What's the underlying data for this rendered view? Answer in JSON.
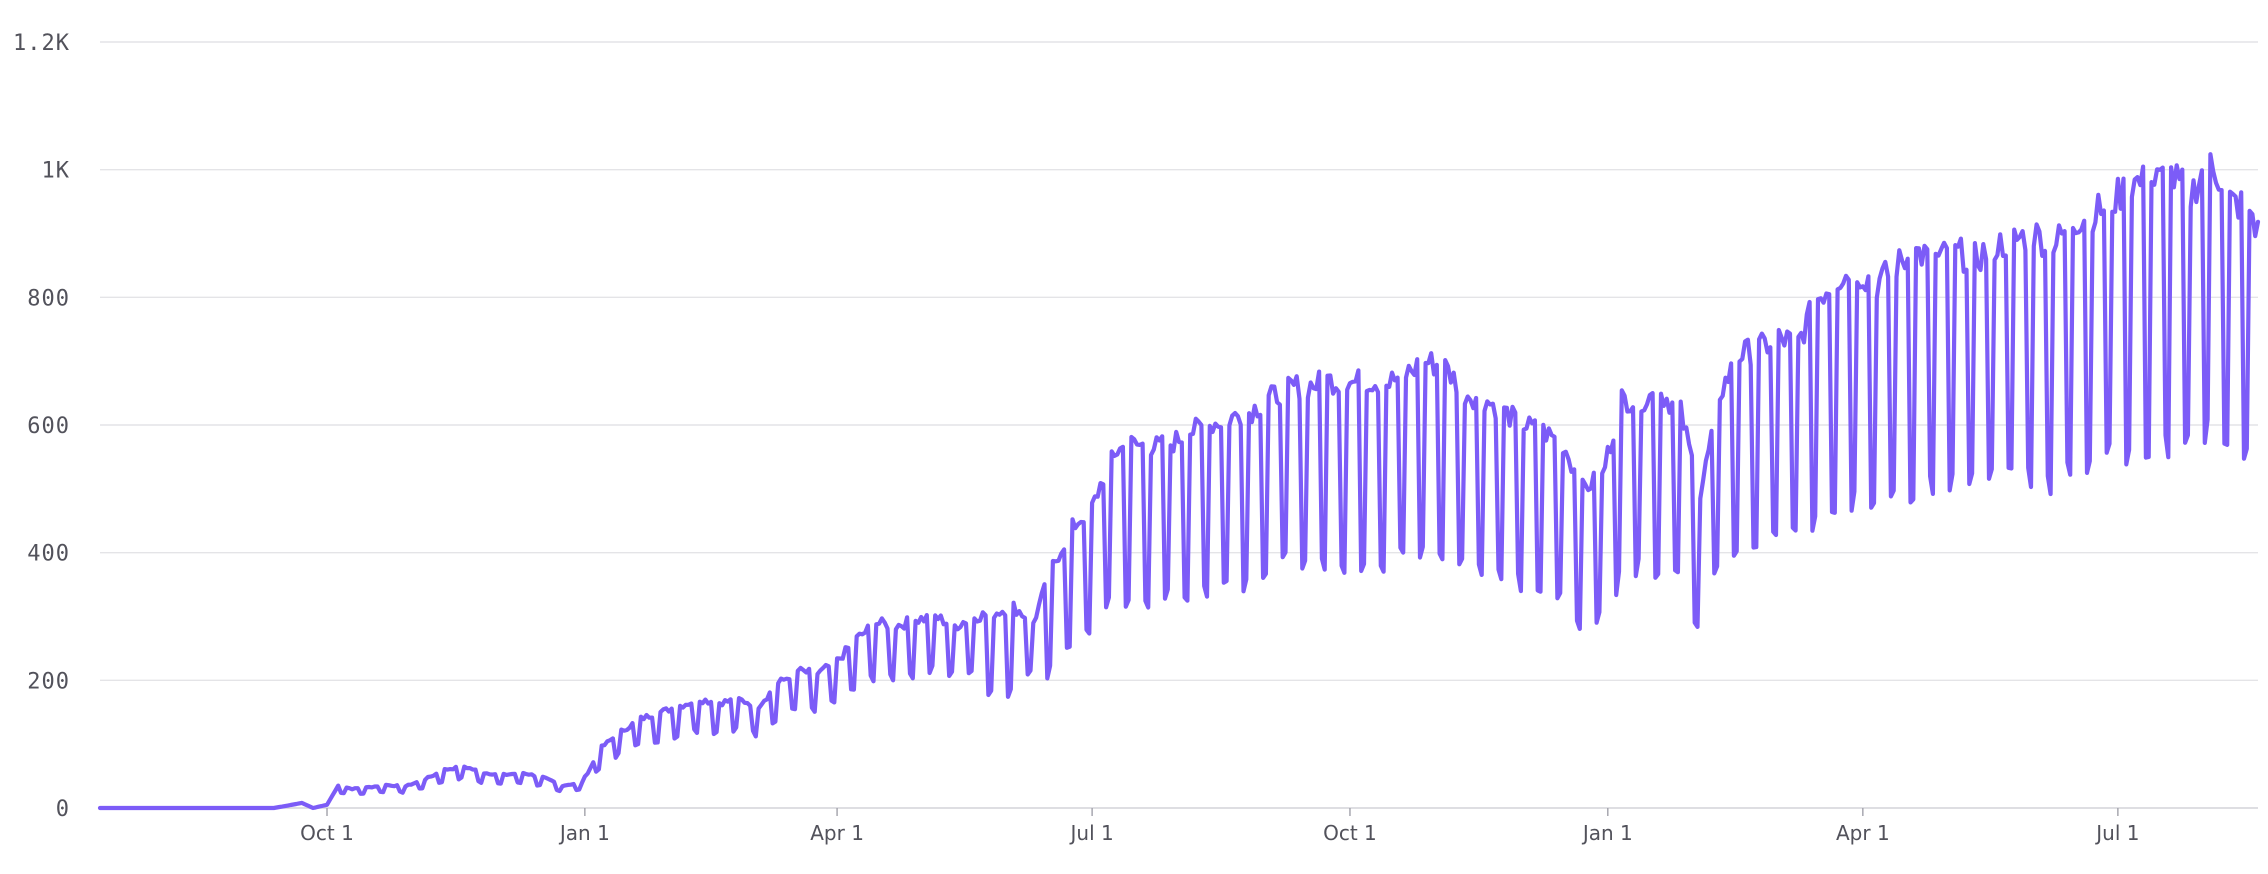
{
  "chart_data": {
    "type": "line",
    "title": "",
    "xlabel": "",
    "ylabel": "",
    "grid": true,
    "legend": "none",
    "x_axis": {
      "type": "date",
      "start": "2018-07-12",
      "end": "2020-08-20",
      "ticks": [
        {
          "date": "2018-10-01",
          "label": "Oct 1"
        },
        {
          "date": "2019-01-01",
          "label": "Jan 1"
        },
        {
          "date": "2019-04-01",
          "label": "Apr 1"
        },
        {
          "date": "2019-07-01",
          "label": "Jul 1"
        },
        {
          "date": "2019-10-01",
          "label": "Oct 1"
        },
        {
          "date": "2020-01-01",
          "label": "Jan 1"
        },
        {
          "date": "2020-04-01",
          "label": "Apr 1"
        },
        {
          "date": "2020-07-01",
          "label": "Jul 1"
        }
      ]
    },
    "y_axis": {
      "ylim": [
        0,
        1200
      ],
      "ticks": [
        {
          "value": 0,
          "label": "0"
        },
        {
          "value": 200,
          "label": "200"
        },
        {
          "value": 400,
          "label": "400"
        },
        {
          "value": 600,
          "label": "600"
        },
        {
          "value": 800,
          "label": "800"
        },
        {
          "value": 1000,
          "label": "1K"
        },
        {
          "value": 1200,
          "label": "1.2K"
        }
      ]
    },
    "series": [
      {
        "color": "#7c5cf7",
        "weekly_pattern": "weekday peaks with weekend dips",
        "points": [
          [
            "2018-07-12",
            0
          ],
          [
            "2018-09-12",
            0
          ],
          [
            "2018-09-16",
            3
          ],
          [
            "2018-09-22",
            8
          ],
          [
            "2018-09-26",
            0
          ],
          [
            "2018-10-01",
            5
          ],
          [
            "2018-10-05",
            35
          ],
          [
            "2018-10-10",
            30
          ],
          [
            "2018-10-15",
            32
          ],
          [
            "2018-10-22",
            36
          ],
          [
            "2018-10-29",
            34
          ],
          [
            "2018-11-05",
            45
          ],
          [
            "2018-11-12",
            60
          ],
          [
            "2018-11-19",
            65
          ],
          [
            "2018-11-26",
            55
          ],
          [
            "2018-12-03",
            52
          ],
          [
            "2018-12-10",
            55
          ],
          [
            "2018-12-17",
            48
          ],
          [
            "2018-12-24",
            35
          ],
          [
            "2018-12-31",
            40
          ],
          [
            "2019-01-07",
            95
          ],
          [
            "2019-01-14",
            120
          ],
          [
            "2019-01-21",
            140
          ],
          [
            "2019-01-28",
            150
          ],
          [
            "2019-02-04",
            160
          ],
          [
            "2019-02-11",
            170
          ],
          [
            "2019-02-18",
            165
          ],
          [
            "2019-02-25",
            170
          ],
          [
            "2019-03-04",
            160
          ],
          [
            "2019-03-11",
            195
          ],
          [
            "2019-03-18",
            215
          ],
          [
            "2019-03-25",
            210
          ],
          [
            "2019-04-01",
            230
          ],
          [
            "2019-04-08",
            265
          ],
          [
            "2019-04-15",
            290
          ],
          [
            "2019-04-22",
            285
          ],
          [
            "2019-04-29",
            295
          ],
          [
            "2019-05-06",
            300
          ],
          [
            "2019-05-13",
            285
          ],
          [
            "2019-05-20",
            300
          ],
          [
            "2019-05-27",
            305
          ],
          [
            "2019-06-03",
            315
          ],
          [
            "2019-06-10",
            290
          ],
          [
            "2019-06-17",
            380
          ],
          [
            "2019-06-24",
            440
          ],
          [
            "2019-07-01",
            470
          ],
          [
            "2019-07-08",
            555
          ],
          [
            "2019-07-15",
            570
          ],
          [
            "2019-07-22",
            565
          ],
          [
            "2019-07-29",
            570
          ],
          [
            "2019-08-05",
            590
          ],
          [
            "2019-08-12",
            600
          ],
          [
            "2019-08-19",
            610
          ],
          [
            "2019-08-26",
            620
          ],
          [
            "2019-09-02",
            640
          ],
          [
            "2019-09-09",
            660
          ],
          [
            "2019-09-16",
            660
          ],
          [
            "2019-09-23",
            670
          ],
          [
            "2019-09-30",
            665
          ],
          [
            "2019-10-07",
            670
          ],
          [
            "2019-10-14",
            665
          ],
          [
            "2019-10-21",
            680
          ],
          [
            "2019-10-28",
            700
          ],
          [
            "2019-11-04",
            690
          ],
          [
            "2019-11-11",
            650
          ],
          [
            "2019-11-18",
            640
          ],
          [
            "2019-11-25",
            620
          ],
          [
            "2019-12-02",
            600
          ],
          [
            "2019-12-09",
            590
          ],
          [
            "2019-12-16",
            570
          ],
          [
            "2019-12-23",
            500
          ],
          [
            "2019-12-30",
            520
          ],
          [
            "2020-01-06",
            640
          ],
          [
            "2020-01-13",
            640
          ],
          [
            "2020-01-20",
            650
          ],
          [
            "2020-01-27",
            620
          ],
          [
            "2020-02-03",
            490
          ],
          [
            "2020-02-10",
            650
          ],
          [
            "2020-02-17",
            710
          ],
          [
            "2020-02-24",
            720
          ],
          [
            "2020-03-02",
            735
          ],
          [
            "2020-03-09",
            730
          ],
          [
            "2020-03-16",
            800
          ],
          [
            "2020-03-23",
            830
          ],
          [
            "2020-03-30",
            840
          ],
          [
            "2020-04-06",
            820
          ],
          [
            "2020-04-13",
            850
          ],
          [
            "2020-04-20",
            870
          ],
          [
            "2020-04-27",
            860
          ],
          [
            "2020-05-04",
            870
          ],
          [
            "2020-05-11",
            860
          ],
          [
            "2020-05-18",
            880
          ],
          [
            "2020-05-25",
            890
          ],
          [
            "2020-06-01",
            900
          ],
          [
            "2020-06-08",
            880
          ],
          [
            "2020-06-15",
            920
          ],
          [
            "2020-06-22",
            930
          ],
          [
            "2020-06-29",
            950
          ],
          [
            "2020-07-06",
            980
          ],
          [
            "2020-07-13",
            980
          ],
          [
            "2020-07-20",
            990
          ],
          [
            "2020-07-27",
            960
          ],
          [
            "2020-08-03",
            1020
          ],
          [
            "2020-08-10",
            950
          ],
          [
            "2020-08-17",
            940
          ],
          [
            "2020-08-20",
            900
          ]
        ]
      }
    ]
  }
}
